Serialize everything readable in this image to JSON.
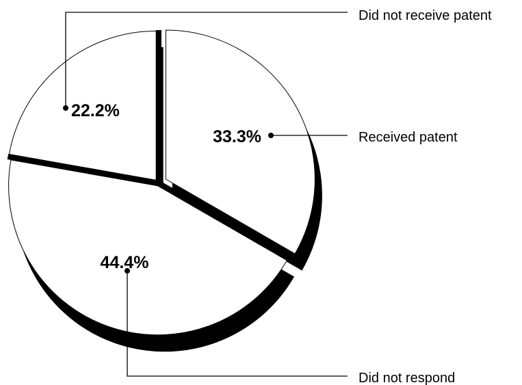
{
  "chart_data": {
    "type": "pie",
    "style": "exploded 3D pie with leader lines",
    "colors": {
      "slice_fill": "#ffffff",
      "outline": "#000000",
      "shadow": "#000000"
    },
    "slices": [
      {
        "label": "Received patent",
        "value": 33.3,
        "value_label": "33.3%"
      },
      {
        "label": "Did not respond",
        "value": 44.4,
        "value_label": "44.4%"
      },
      {
        "label": "Did not receive patent",
        "value": 22.2,
        "value_label": "22.2%"
      }
    ]
  }
}
